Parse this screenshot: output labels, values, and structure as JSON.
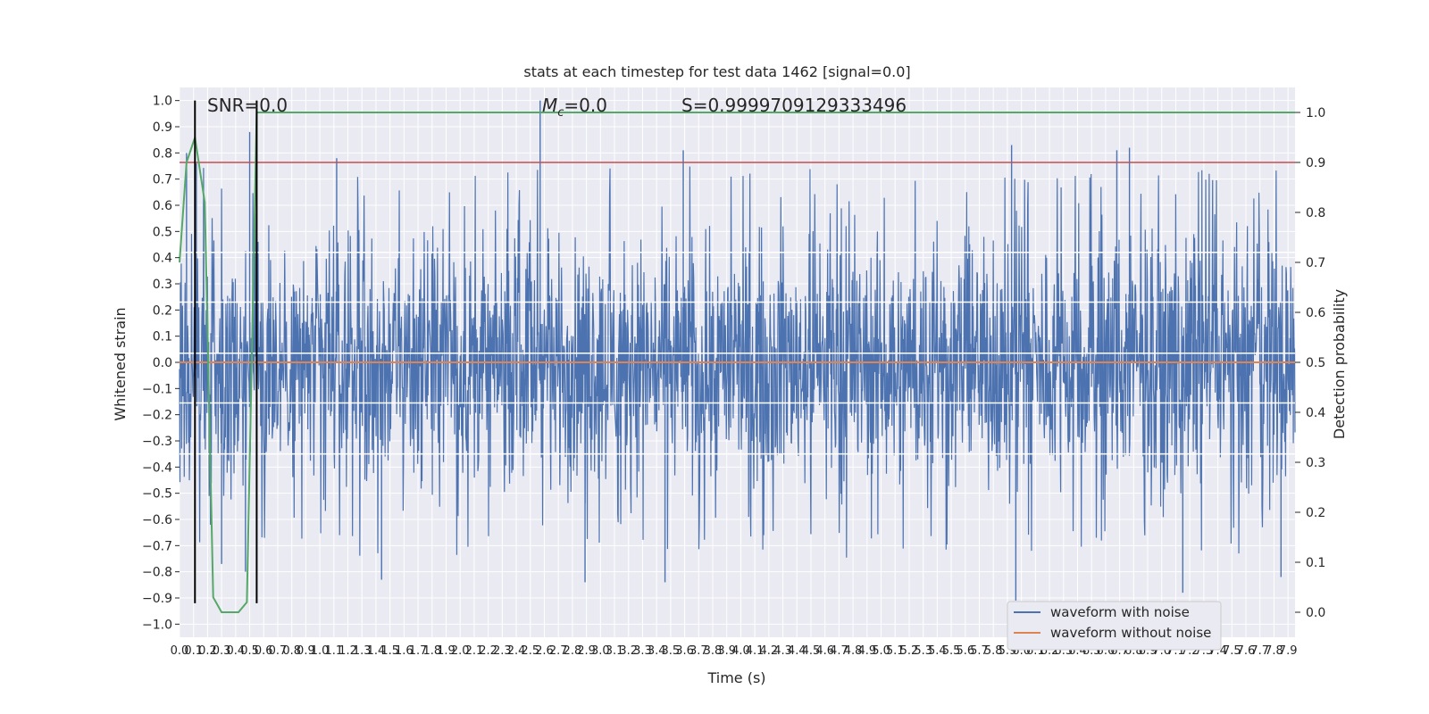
{
  "chart_data": {
    "type": "line",
    "title": "stats at each timestep for test data 1462 [signal=0.0]",
    "xlabel": "Time (s)",
    "ylabel": "Whitened strain",
    "y2label": "Detection probability",
    "xlim": [
      0.0,
      7.95
    ],
    "ylim": [
      -1.05,
      1.05
    ],
    "y2lim": [
      -0.05,
      1.05
    ],
    "x_ticks": [
      0.0,
      0.1,
      0.2,
      0.3,
      0.4,
      0.5,
      0.6,
      0.7,
      0.8,
      0.9,
      1.0,
      1.1,
      1.2,
      1.3,
      1.4,
      1.5,
      1.6,
      1.7,
      1.8,
      1.9,
      2.0,
      2.1,
      2.2,
      2.3,
      2.4,
      2.5,
      2.6,
      2.7,
      2.8,
      2.9,
      3.0,
      3.1,
      3.2,
      3.3,
      3.4,
      3.5,
      3.6,
      3.7,
      3.8,
      3.9,
      4.0,
      4.1,
      4.2,
      4.3,
      4.4,
      4.5,
      4.6,
      4.7,
      4.8,
      4.9,
      5.0,
      5.1,
      5.2,
      5.3,
      5.4,
      5.5,
      5.6,
      5.7,
      5.8,
      5.9,
      6.0,
      6.1,
      6.2,
      6.3,
      6.4,
      6.5,
      6.6,
      6.7,
      6.8,
      6.9,
      7.0,
      7.1,
      7.2,
      7.3,
      7.4,
      7.5,
      7.6,
      7.7,
      7.8,
      7.9
    ],
    "y_ticks": [
      -1.0,
      -0.9,
      -0.8,
      -0.7,
      -0.6,
      -0.5,
      -0.4,
      -0.3,
      -0.2,
      -0.1,
      0.0,
      0.1,
      0.2,
      0.3,
      0.4,
      0.5,
      0.6,
      0.7,
      0.8,
      0.9,
      1.0
    ],
    "y2_ticks": [
      0.0,
      0.1,
      0.2,
      0.3,
      0.4,
      0.5,
      0.6,
      0.7,
      0.8,
      0.9,
      1.0
    ],
    "annotations": {
      "snr": "SNR=0.0",
      "mc_symbol": "M",
      "mc_sub": "c",
      "mc_value": "=0.0",
      "s": "S=0.9999709129333496"
    },
    "grid": true,
    "legend_placement": "lower-right",
    "series": [
      {
        "name": "waveform with noise",
        "axis": "left",
        "color": "#4c72b0",
        "style": "dense noise spanning roughly -0.55..0.55 with spikes",
        "peaks": [
          [
            0.05,
            0.8
          ],
          [
            0.12,
            0.76
          ],
          [
            0.5,
            0.88
          ],
          [
            2.57,
            1.0
          ],
          [
            3.59,
            0.81
          ],
          [
            5.93,
            0.83
          ],
          [
            6.68,
            0.81
          ],
          [
            6.77,
            0.82
          ],
          [
            1.12,
            0.78
          ]
        ],
        "troughs": [
          [
            0.3,
            -0.77
          ],
          [
            0.47,
            -0.8
          ],
          [
            2.89,
            -0.84
          ],
          [
            5.96,
            -0.91
          ],
          [
            7.15,
            -0.88
          ],
          [
            1.44,
            -0.83
          ],
          [
            3.46,
            -0.84
          ],
          [
            7.85,
            -0.82
          ]
        ]
      },
      {
        "name": "waveform without noise",
        "axis": "left",
        "color": "#dd8452",
        "x": [
          0.0,
          7.95
        ],
        "y": [
          0.0,
          0.0
        ]
      },
      {
        "axis": "right",
        "color": "#55a868",
        "x": [
          0.0,
          0.05,
          0.11,
          0.18,
          0.24,
          0.3,
          0.36,
          0.42,
          0.48,
          0.55,
          0.63,
          7.95
        ],
        "y": [
          0.7,
          0.9,
          0.95,
          0.82,
          0.03,
          0.0,
          0.0,
          0.0,
          0.02,
          1.0,
          1.0,
          1.0
        ]
      },
      {
        "axis": "right",
        "color": "#c44e52",
        "x": [
          0.0,
          7.95
        ],
        "y": [
          0.9,
          0.9
        ]
      }
    ],
    "vertical_lines": [
      0.11,
      0.55
    ],
    "vertical_line_color": "#000000",
    "horizontal_white_lines": [
      0.42,
      0.23,
      0.035,
      -0.155,
      -0.35
    ]
  }
}
